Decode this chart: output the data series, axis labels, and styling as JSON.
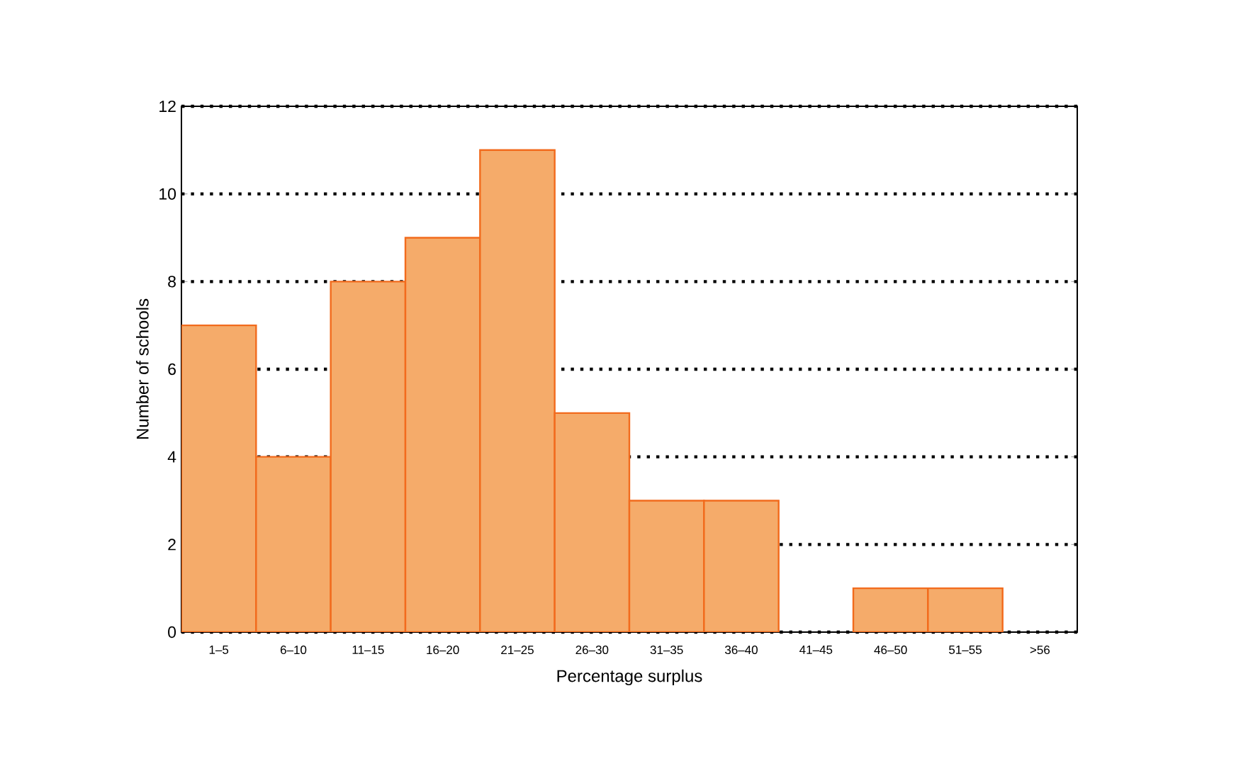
{
  "chart_data": {
    "type": "bar",
    "xlabel": "Percentage surplus",
    "ylabel": "Number of schools",
    "categories": [
      "1–5",
      "6–10",
      "11–15",
      "16–20",
      "21–25",
      "26–30",
      "31–35",
      "36–40",
      "41–45",
      "46–50",
      "51–55",
      ">56"
    ],
    "values": [
      7,
      4,
      8,
      9,
      11,
      5,
      3,
      3,
      0,
      1,
      1,
      0
    ],
    "color": "#f5ab6a",
    "ylim": [
      0,
      12
    ],
    "yticks": [
      0,
      2,
      4,
      6,
      8,
      10,
      12
    ],
    "grid": "y"
  }
}
